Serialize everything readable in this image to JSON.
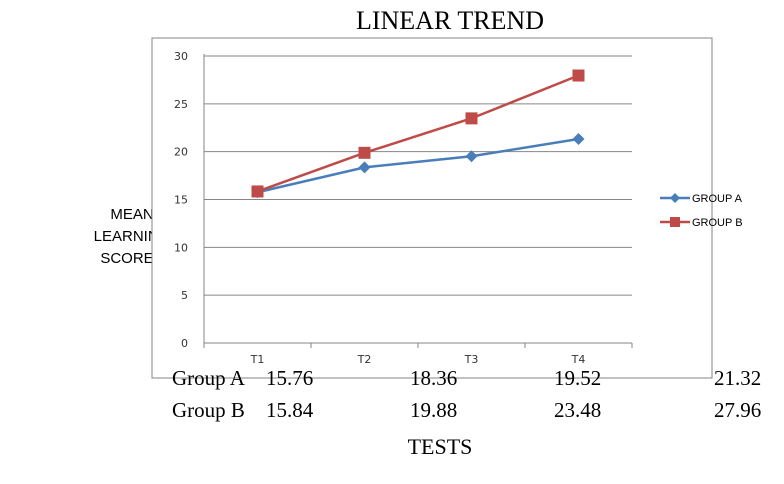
{
  "chart_data": {
    "type": "line",
    "title": "LINEAR TREND",
    "ylabel": [
      "MEAN",
      "LEARNING",
      "SCORES"
    ],
    "xlabel": "TESTS",
    "categories": [
      "T1",
      "T2",
      "T3",
      "T4"
    ],
    "ylim": [
      0,
      30
    ],
    "yticks": [
      0,
      5,
      10,
      15,
      20,
      25,
      30
    ],
    "grid": true,
    "legend_position": "right",
    "series": [
      {
        "name": "GROUP A",
        "values": [
          15.76,
          18.36,
          19.52,
          21.32
        ],
        "color": "#4a7ebb",
        "marker": "diamond"
      },
      {
        "name": "GROUP B",
        "values": [
          15.84,
          19.88,
          23.48,
          27.96
        ],
        "color": "#be4b48",
        "marker": "square"
      }
    ]
  },
  "table": {
    "rows": [
      {
        "label": "Group A",
        "values": [
          "15.76",
          "18.36",
          "19.52",
          "21.32"
        ]
      },
      {
        "label": "Group B",
        "values": [
          "15.84",
          "19.88",
          "23.48",
          "27.96"
        ]
      }
    ]
  }
}
